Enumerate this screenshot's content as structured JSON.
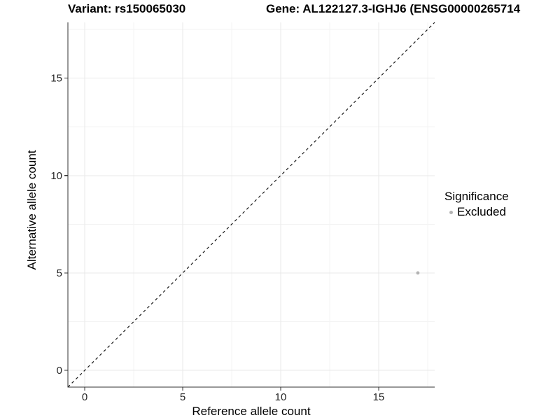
{
  "figure": {
    "title_left": "Variant: rs150065030",
    "title_right": "Gene: AL122127.3-IGHJ6 (ENSG00000265714",
    "background": "#ffffff"
  },
  "chart_data": {
    "type": "scatter",
    "xlabel": "Reference allele count",
    "ylabel": "Alternative allele count",
    "x_ticks": [
      0,
      5,
      10,
      15
    ],
    "y_ticks": [
      0,
      5,
      10,
      15
    ],
    "x_minor_ticks": [
      2.5,
      7.5,
      12.5,
      17.5
    ],
    "y_minor_ticks": [
      2.5,
      7.5,
      12.5,
      17.5
    ],
    "xlim": [
      -0.86,
      17.86
    ],
    "ylim": [
      -0.86,
      17.86
    ],
    "grid": true,
    "points": [
      {
        "x": 17,
        "y": 5,
        "series": "Excluded"
      }
    ],
    "identity_line": {
      "slope": 1,
      "intercept": 0,
      "linetype": "dashed",
      "color": "#1a1a1a"
    },
    "legend": {
      "title": "Significance",
      "position": "right",
      "items": [
        {
          "label": "Excluded",
          "color": "#b3b3b3",
          "shape": "circle"
        }
      ]
    },
    "colors": {
      "point": "#b3b3b3",
      "axis": "#333333",
      "grid_major": "#e9e9e9",
      "grid_minor": "#f3f3f3",
      "tick_label": "#262626"
    }
  }
}
